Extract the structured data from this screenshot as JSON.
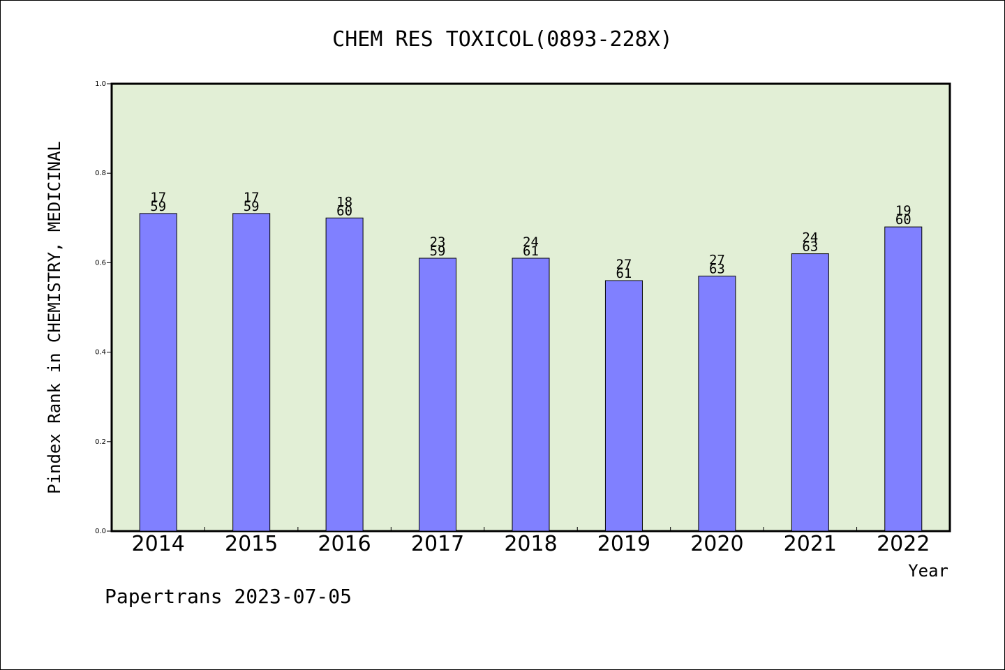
{
  "chart_data": {
    "type": "bar",
    "title": "CHEM RES TOXICOL(0893-228X)",
    "xlabel": "Year",
    "ylabel": "Pindex Rank in CHEMISTRY, MEDICINAL",
    "ylim": [
      0,
      1.0
    ],
    "yticks": [
      "0.0",
      "0.2",
      "0.4",
      "0.6",
      "0.8",
      "1.0"
    ],
    "categories": [
      "2014",
      "2015",
      "2016",
      "2017",
      "2018",
      "2019",
      "2020",
      "2021",
      "2022"
    ],
    "values": [
      0.71,
      0.71,
      0.7,
      0.61,
      0.61,
      0.56,
      0.57,
      0.62,
      0.68
    ],
    "rank_labels": [
      "17",
      "17",
      "18",
      "23",
      "24",
      "27",
      "27",
      "24",
      "19"
    ],
    "total_labels": [
      "59",
      "59",
      "60",
      "59",
      "61",
      "61",
      "63",
      "63",
      "60"
    ],
    "grid": false,
    "colors": {
      "plot_background": "#e2efd6",
      "bar": "#8080ff",
      "bar_edge": "#000000"
    }
  },
  "footer": {
    "credit": "Papertrans 2023-07-05"
  }
}
